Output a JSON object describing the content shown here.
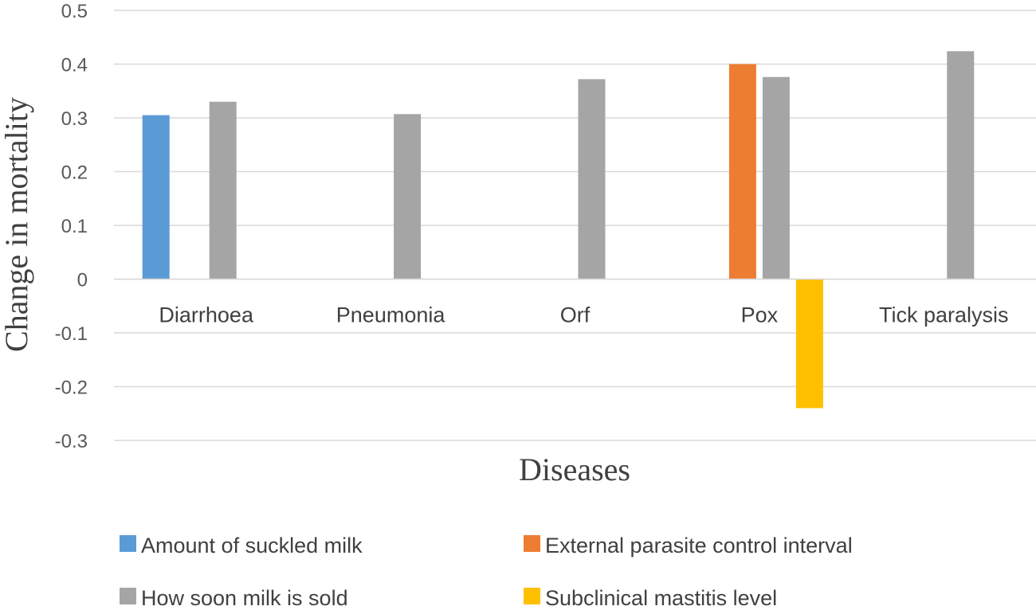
{
  "chart_data": {
    "type": "bar",
    "title": "",
    "xlabel": "Diseases",
    "ylabel": "Change in mortality",
    "ylim": [
      -0.3,
      0.5
    ],
    "yticks": [
      0.5,
      0.4,
      0.3,
      0.2,
      0.1,
      0,
      -0.1,
      -0.2,
      -0.3
    ],
    "ytick_labels": [
      "0.5",
      "0.4",
      "0.3",
      "0.2",
      "0.1",
      "0",
      "-0.1",
      "-0.2",
      "-0.3"
    ],
    "grid": true,
    "legend_position": "bottom",
    "categories": [
      "Diarrhoea",
      "Pneumonia",
      "Orf",
      "Pox",
      "Tick paralysis"
    ],
    "series": [
      {
        "name": "Amount of suckled milk",
        "color": "#5b9bd5",
        "values": [
          0.305,
          null,
          null,
          null,
          null
        ]
      },
      {
        "name": "External parasite control interval",
        "color": "#ed7d31",
        "values": [
          null,
          null,
          null,
          0.4,
          null
        ]
      },
      {
        "name": "How soon milk is sold",
        "color": "#a5a5a5",
        "values": [
          0.33,
          0.307,
          0.372,
          0.376,
          0.424
        ]
      },
      {
        "name": "Subclinical mastitis level",
        "color": "#ffc000",
        "values": [
          null,
          null,
          null,
          -0.24,
          null
        ]
      }
    ]
  }
}
